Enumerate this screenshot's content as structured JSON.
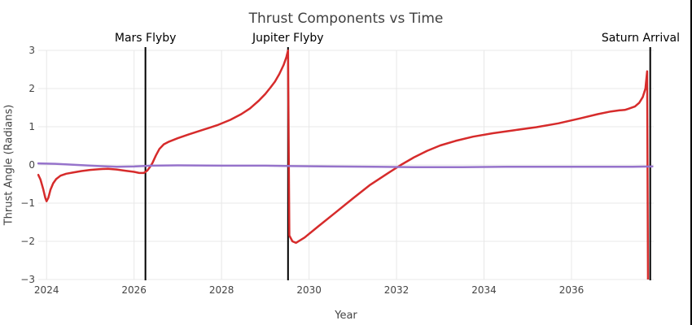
{
  "chart_data": {
    "type": "line",
    "title": "Thrust Components vs Time",
    "xlabel": "Year",
    "ylabel": "Thrust Angle (Radians)",
    "x_range": [
      2023.81,
      2037.88
    ],
    "y_range": [
      -3,
      3
    ],
    "grid": true,
    "legend": "none",
    "x_ticks": [
      {
        "v": 2024,
        "label": "2024"
      },
      {
        "v": 2026,
        "label": "2026"
      },
      {
        "v": 2028,
        "label": "2028"
      },
      {
        "v": 2030,
        "label": "2030"
      },
      {
        "v": 2032,
        "label": "2032"
      },
      {
        "v": 2034,
        "label": "2034"
      },
      {
        "v": 2036,
        "label": "2036"
      }
    ],
    "y_ticks": [
      {
        "v": -3,
        "label": "−3"
      },
      {
        "v": -2,
        "label": "−2"
      },
      {
        "v": -1,
        "label": "−1"
      },
      {
        "v": 0,
        "label": "0"
      },
      {
        "v": 1,
        "label": "1"
      },
      {
        "v": 2,
        "label": "2"
      },
      {
        "v": 3,
        "label": "3"
      }
    ],
    "series": [
      {
        "name": "red-thrust-component",
        "color": "#d62b2b",
        "width": 2.5,
        "points": [
          [
            2023.81,
            -0.26
          ],
          [
            2023.86,
            -0.38
          ],
          [
            2023.92,
            -0.62
          ],
          [
            2023.97,
            -0.86
          ],
          [
            2024.0,
            -0.95
          ],
          [
            2024.04,
            -0.86
          ],
          [
            2024.09,
            -0.65
          ],
          [
            2024.15,
            -0.48
          ],
          [
            2024.22,
            -0.37
          ],
          [
            2024.32,
            -0.28
          ],
          [
            2024.45,
            -0.23
          ],
          [
            2024.6,
            -0.2
          ],
          [
            2024.8,
            -0.16
          ],
          [
            2025.0,
            -0.13
          ],
          [
            2025.2,
            -0.11
          ],
          [
            2025.4,
            -0.1
          ],
          [
            2025.6,
            -0.12
          ],
          [
            2025.8,
            -0.15
          ],
          [
            2026.0,
            -0.18
          ],
          [
            2026.12,
            -0.21
          ],
          [
            2026.22,
            -0.21
          ],
          [
            2026.3,
            -0.15
          ],
          [
            2026.36,
            -0.06
          ],
          [
            2026.42,
            0.05
          ],
          [
            2026.5,
            0.25
          ],
          [
            2026.58,
            0.42
          ],
          [
            2026.68,
            0.54
          ],
          [
            2026.8,
            0.61
          ],
          [
            2027.0,
            0.7
          ],
          [
            2027.25,
            0.8
          ],
          [
            2027.55,
            0.91
          ],
          [
            2027.9,
            1.04
          ],
          [
            2028.2,
            1.18
          ],
          [
            2028.45,
            1.33
          ],
          [
            2028.65,
            1.48
          ],
          [
            2028.85,
            1.68
          ],
          [
            2029.0,
            1.86
          ],
          [
            2029.12,
            2.03
          ],
          [
            2029.22,
            2.18
          ],
          [
            2029.32,
            2.38
          ],
          [
            2029.42,
            2.62
          ],
          [
            2029.48,
            2.82
          ],
          [
            2029.52,
            3.0
          ],
          [
            2029.55,
            -1.85
          ],
          [
            2029.62,
            -2.0
          ],
          [
            2029.7,
            -2.04
          ],
          [
            2029.9,
            -1.9
          ],
          [
            2030.2,
            -1.62
          ],
          [
            2030.6,
            -1.25
          ],
          [
            2031.0,
            -0.88
          ],
          [
            2031.4,
            -0.52
          ],
          [
            2031.8,
            -0.22
          ],
          [
            2032.1,
            0.0
          ],
          [
            2032.4,
            0.2
          ],
          [
            2032.7,
            0.37
          ],
          [
            2033.0,
            0.51
          ],
          [
            2033.35,
            0.63
          ],
          [
            2033.75,
            0.74
          ],
          [
            2034.2,
            0.83
          ],
          [
            2034.7,
            0.91
          ],
          [
            2035.2,
            0.99
          ],
          [
            2035.7,
            1.09
          ],
          [
            2036.2,
            1.22
          ],
          [
            2036.6,
            1.33
          ],
          [
            2036.9,
            1.4
          ],
          [
            2037.1,
            1.43
          ],
          [
            2037.22,
            1.44
          ],
          [
            2037.3,
            1.47
          ],
          [
            2037.45,
            1.53
          ],
          [
            2037.55,
            1.63
          ],
          [
            2037.63,
            1.78
          ],
          [
            2037.69,
            2.0
          ],
          [
            2037.73,
            2.45
          ],
          [
            2037.75,
            -3.2
          ]
        ]
      },
      {
        "name": "purple-thrust-component",
        "color": "#9673cb",
        "width": 2.5,
        "points": [
          [
            2023.81,
            0.04
          ],
          [
            2024.2,
            0.03
          ],
          [
            2024.7,
            0.0
          ],
          [
            2025.2,
            -0.03
          ],
          [
            2025.6,
            -0.05
          ],
          [
            2026.0,
            -0.04
          ],
          [
            2026.4,
            -0.02
          ],
          [
            2027.0,
            -0.01
          ],
          [
            2028.0,
            -0.02
          ],
          [
            2029.0,
            -0.02
          ],
          [
            2029.6,
            -0.03
          ],
          [
            2030.5,
            -0.04
          ],
          [
            2031.5,
            -0.05
          ],
          [
            2032.5,
            -0.06
          ],
          [
            2033.5,
            -0.06
          ],
          [
            2034.5,
            -0.05
          ],
          [
            2035.5,
            -0.05
          ],
          [
            2036.5,
            -0.05
          ],
          [
            2037.4,
            -0.05
          ],
          [
            2037.85,
            -0.04
          ]
        ]
      }
    ],
    "annotations": [
      {
        "label": "Mars Flyby",
        "x": 2026.26
      },
      {
        "label": "Jupiter Flyby",
        "x": 2029.52
      },
      {
        "label": "Saturn Arrival",
        "x": 2037.8
      }
    ],
    "colors": {
      "background": "#ffffff",
      "grid": "#e8e8e8",
      "annotation_line": "#000000",
      "tick_text": "#444444",
      "annotation_text": "#000000",
      "right_edge_line": "#000000"
    }
  }
}
